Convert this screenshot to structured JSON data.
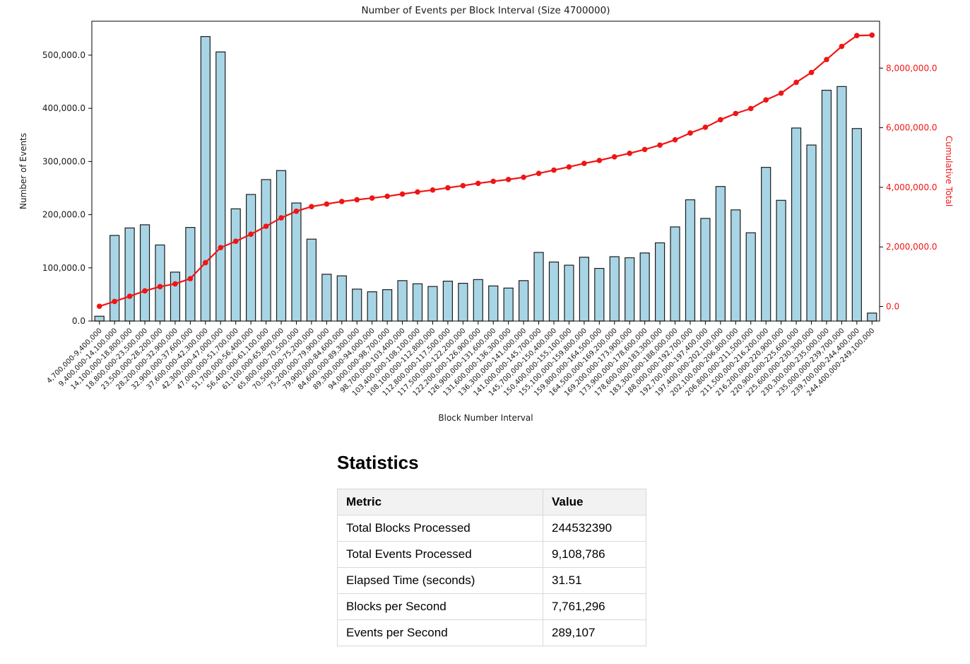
{
  "chart_data": {
    "type": "bar",
    "title": "Number of Events per Block Interval (Size 4700000)",
    "xlabel": "Block Number Interval",
    "ylabel": "Number of Events",
    "ylabel_right": "Cumulative Total",
    "grid": false,
    "legend": "none",
    "categories": [
      "4,700,000-9,400,000",
      "9,400,000-14,100,000",
      "14,100,000-18,800,000",
      "18,800,000-23,500,000",
      "23,500,000-28,200,000",
      "28,200,000-32,900,000",
      "32,900,000-37,600,000",
      "37,600,000-42,300,000",
      "42,300,000-47,000,000",
      "47,000,000-51,700,000",
      "51,700,000-56,400,000",
      "56,400,000-61,100,000",
      "61,100,000-65,800,000",
      "65,800,000-70,500,000",
      "70,500,000-75,200,000",
      "75,200,000-79,900,000",
      "79,900,000-84,600,000",
      "84,600,000-89,300,000",
      "89,300,000-94,000,000",
      "94,000,000-98,700,000",
      "98,700,000-103,400,000",
      "103,400,000-108,100,000",
      "108,100,000-112,800,000",
      "112,800,000-117,500,000",
      "117,500,000-122,200,000",
      "122,200,000-126,900,000",
      "126,900,000-131,600,000",
      "131,600,000-136,300,000",
      "136,300,000-141,000,000",
      "141,000,000-145,700,000",
      "145,700,000-150,400,000",
      "150,400,000-155,100,000",
      "155,100,000-159,800,000",
      "159,800,000-164,500,000",
      "164,500,000-169,200,000",
      "169,200,000-173,900,000",
      "173,900,000-178,600,000",
      "178,600,000-183,300,000",
      "183,300,000-188,000,000",
      "188,000,000-192,700,000",
      "192,700,000-197,400,000",
      "197,400,000-202,100,000",
      "202,100,000-206,800,000",
      "206,800,000-211,500,000",
      "211,500,000-216,200,000",
      "216,200,000-220,900,000",
      "220,900,000-225,600,000",
      "225,600,000-230,300,000",
      "230,300,000-235,000,000",
      "235,000,000-239,700,000",
      "239,700,000-244,400,000",
      "244,400,000-249,100,000"
    ],
    "series": [
      {
        "name": "Number of Events",
        "type": "bar",
        "color": "#a8d5e5",
        "edge_color": "#1c1c1c",
        "values": [
          9000,
          161000,
          175000,
          181000,
          143000,
          92000,
          176000,
          535000,
          506000,
          211000,
          238000,
          266000,
          283000,
          222000,
          154000,
          88000,
          85000,
          60000,
          55000,
          59000,
          76000,
          70000,
          65000,
          75000,
          71000,
          78000,
          66000,
          62000,
          76000,
          129000,
          111000,
          105000,
          120000,
          99000,
          121000,
          119000,
          128000,
          147000,
          177000,
          228000,
          193000,
          253000,
          209000,
          166000,
          289000,
          227000,
          363000,
          331000,
          434000,
          441000,
          362000,
          15000
        ]
      },
      {
        "name": "Cumulative Total",
        "type": "line",
        "color": "#f01515",
        "values": [
          9000,
          170000,
          345000,
          526000,
          669000,
          761000,
          937000,
          1472000,
          1978000,
          2189000,
          2427000,
          2693000,
          2976000,
          3198000,
          3352000,
          3440000,
          3525000,
          3585000,
          3640000,
          3699000,
          3775000,
          3845000,
          3910000,
          3985000,
          4056000,
          4134000,
          4200000,
          4262000,
          4338000,
          4467000,
          4578000,
          4683000,
          4803000,
          4902000,
          5023000,
          5142000,
          5270000,
          5417000,
          5594000,
          5822000,
          6015000,
          6268000,
          6477000,
          6643000,
          6932000,
          7159000,
          7522000,
          7853000,
          8287000,
          8728000,
          9090000,
          9105000
        ]
      }
    ],
    "left_axis": {
      "tick_labels": [
        "0.0",
        "100,000.0",
        "200,000.0",
        "300,000.0",
        "400,000.0",
        "500,000.0"
      ],
      "tick_values": [
        0,
        100000,
        200000,
        300000,
        400000,
        500000
      ],
      "range": [
        0,
        563800
      ],
      "color": "#1a1a1a"
    },
    "right_axis": {
      "tick_labels": [
        "0.0",
        "2,000,000.0",
        "4,000,000.0",
        "6,000,000.0",
        "8,000,000.0"
      ],
      "tick_values": [
        0,
        2000000,
        4000000,
        6000000,
        8000000
      ],
      "color": "#f01515"
    }
  },
  "statistics": {
    "heading": "Statistics",
    "table": {
      "headers": [
        "Metric",
        "Value"
      ],
      "rows": [
        [
          "Total Blocks Processed",
          "244532390"
        ],
        [
          "Total Events Processed",
          "9,108,786"
        ],
        [
          "Elapsed Time (seconds)",
          "31.51"
        ],
        [
          "Blocks per Second",
          "7,761,296"
        ],
        [
          "Events per Second",
          "289,107"
        ]
      ]
    }
  }
}
